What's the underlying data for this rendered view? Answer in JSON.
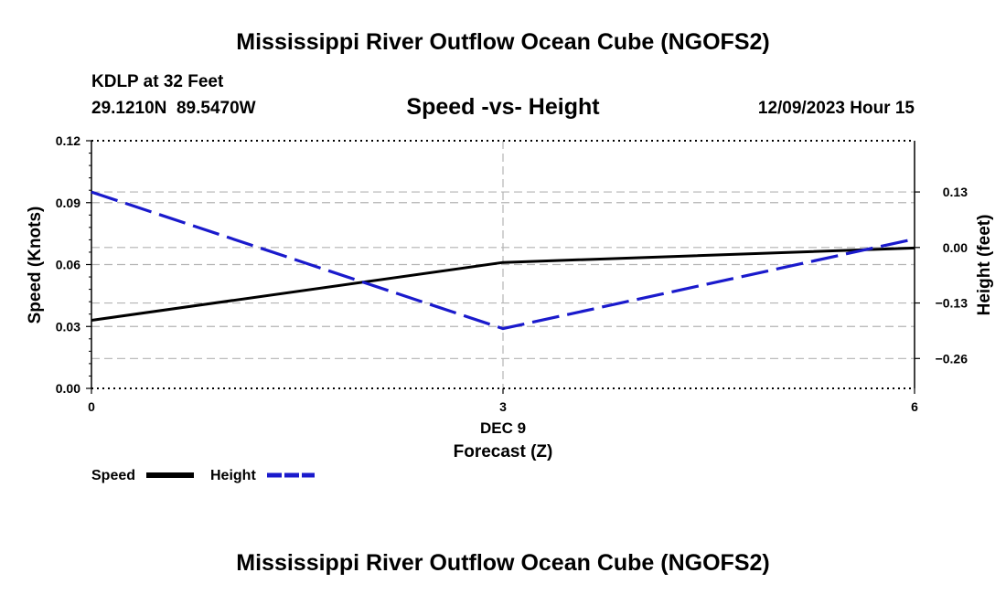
{
  "main_title": "Mississippi River Outflow Ocean Cube (NGOFS2)",
  "station": {
    "name": "KDLP at 32 Feet",
    "coords": "29.1210N  89.5470W"
  },
  "datetime": "12/09/2023 Hour 15",
  "footer_title": "Mississippi River Outflow Ocean Cube (NGOFS2)",
  "chart_data": {
    "type": "line",
    "title": "Speed -vs- Height",
    "xlabel": "Forecast (Z)",
    "date_label": "DEC 9",
    "x": [
      0,
      3,
      6
    ],
    "x_ticks": [
      "0",
      "3",
      "6"
    ],
    "xlim": [
      0,
      6
    ],
    "y_left": {
      "label": "Speed (Knots)",
      "lim": [
        0,
        0.12
      ],
      "ticks": [
        0.0,
        0.03,
        0.06,
        0.09,
        0.12
      ],
      "tick_labels": [
        "0.00",
        "0.03",
        "0.06",
        "0.09",
        "0.12"
      ]
    },
    "y_right": {
      "label": "Height (feet)",
      "lim": [
        -0.33,
        0.25
      ],
      "ticks": [
        -0.26,
        -0.13,
        0.0,
        0.13
      ],
      "tick_labels": [
        "−0.26",
        "−0.13",
        "0.00",
        "0.13"
      ]
    },
    "series": [
      {
        "name": "Speed",
        "axis": "left",
        "color": "#000000",
        "style": "solid",
        "values": [
          0.033,
          0.061,
          0.068
        ]
      },
      {
        "name": "Height",
        "axis": "right",
        "color": "#1a1acc",
        "style": "dashed",
        "values": [
          0.13,
          -0.19,
          0.02
        ]
      }
    ],
    "legend": [
      "Speed",
      "Height"
    ],
    "legend_position": "bottom-left"
  }
}
